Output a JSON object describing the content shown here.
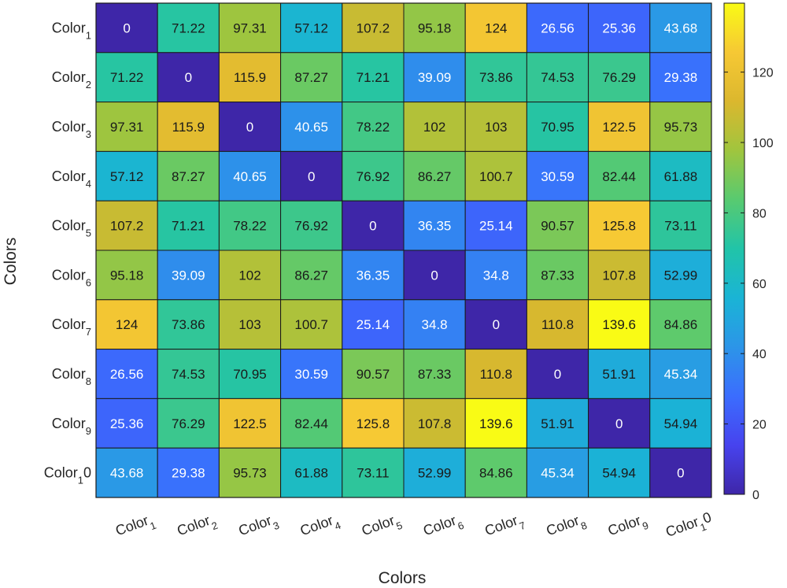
{
  "chart_data": {
    "type": "heatmap",
    "title": "",
    "xlabel": "Colors",
    "ylabel": "Colors",
    "row_labels": [
      {
        "base": "Color",
        "sub": "1",
        "suffix": ""
      },
      {
        "base": "Color",
        "sub": "2",
        "suffix": ""
      },
      {
        "base": "Color",
        "sub": "3",
        "suffix": ""
      },
      {
        "base": "Color",
        "sub": "4",
        "suffix": ""
      },
      {
        "base": "Color",
        "sub": "5",
        "suffix": ""
      },
      {
        "base": "Color",
        "sub": "6",
        "suffix": ""
      },
      {
        "base": "Color",
        "sub": "7",
        "suffix": ""
      },
      {
        "base": "Color",
        "sub": "8",
        "suffix": ""
      },
      {
        "base": "Color",
        "sub": "9",
        "suffix": ""
      },
      {
        "base": "Color",
        "sub": "1",
        "suffix": "0"
      }
    ],
    "col_labels": [
      {
        "base": "Color",
        "sub": "1",
        "suffix": ""
      },
      {
        "base": "Color",
        "sub": "2",
        "suffix": ""
      },
      {
        "base": "Color",
        "sub": "3",
        "suffix": ""
      },
      {
        "base": "Color",
        "sub": "4",
        "suffix": ""
      },
      {
        "base": "Color",
        "sub": "5",
        "suffix": ""
      },
      {
        "base": "Color",
        "sub": "6",
        "suffix": ""
      },
      {
        "base": "Color",
        "sub": "7",
        "suffix": ""
      },
      {
        "base": "Color",
        "sub": "8",
        "suffix": ""
      },
      {
        "base": "Color",
        "sub": "9",
        "suffix": ""
      },
      {
        "base": "Color",
        "sub": "1",
        "suffix": "0"
      }
    ],
    "values": [
      [
        0,
        71.22,
        97.31,
        57.12,
        107.2,
        95.18,
        124,
        26.56,
        25.36,
        43.68
      ],
      [
        71.22,
        0,
        115.9,
        87.27,
        71.21,
        39.09,
        73.86,
        74.53,
        76.29,
        29.38
      ],
      [
        97.31,
        115.9,
        0,
        40.65,
        78.22,
        102,
        103,
        70.95,
        122.5,
        95.73
      ],
      [
        57.12,
        87.27,
        40.65,
        0,
        76.92,
        86.27,
        100.7,
        30.59,
        82.44,
        61.88
      ],
      [
        107.2,
        71.21,
        78.22,
        76.92,
        0,
        36.35,
        25.14,
        90.57,
        125.8,
        73.11
      ],
      [
        95.18,
        39.09,
        102,
        86.27,
        36.35,
        0,
        34.8,
        87.33,
        107.8,
        52.99
      ],
      [
        124,
        73.86,
        103,
        100.7,
        25.14,
        34.8,
        0,
        110.8,
        139.6,
        84.86
      ],
      [
        26.56,
        74.53,
        70.95,
        30.59,
        90.57,
        87.33,
        110.8,
        0,
        51.91,
        45.34
      ],
      [
        25.36,
        76.29,
        122.5,
        82.44,
        125.8,
        107.8,
        139.6,
        51.91,
        0,
        54.94
      ],
      [
        43.68,
        29.38,
        95.73,
        61.88,
        73.11,
        52.99,
        84.86,
        45.34,
        54.94,
        0
      ]
    ],
    "colormap": "parula",
    "color_range": [
      0,
      139.6
    ],
    "colorbar": {
      "ticks": [
        0,
        20,
        40,
        60,
        80,
        100,
        120
      ],
      "location": "right"
    },
    "grid": false
  }
}
